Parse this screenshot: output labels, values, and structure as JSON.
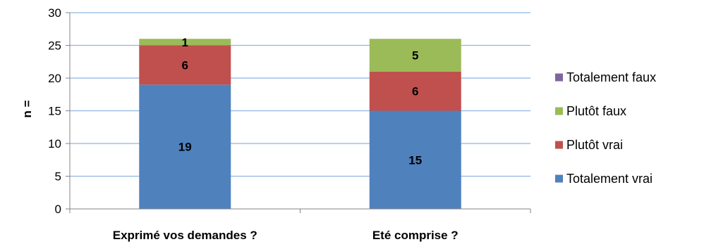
{
  "chart_data": {
    "type": "bar",
    "stacked": true,
    "categories": [
      "Exprimé vos demandes ?",
      "Eté comprise ?"
    ],
    "series": [
      {
        "name": "Totalement vrai",
        "values": [
          19,
          15
        ],
        "color": "#4f81bd"
      },
      {
        "name": "Plutôt vrai",
        "values": [
          6,
          6
        ],
        "color": "#c0504d"
      },
      {
        "name": "Plutôt faux",
        "values": [
          1,
          5
        ],
        "color": "#9bbb59"
      },
      {
        "name": "Totalement faux",
        "values": [
          0,
          0
        ],
        "color": "#8064a2"
      }
    ],
    "ylabel": "n =",
    "ylim": [
      0,
      30
    ],
    "yticks": [
      0,
      5,
      10,
      15,
      20,
      25,
      30
    ],
    "grid": true,
    "legend": "right",
    "legend_order": [
      "Totalement faux",
      "Plutôt faux",
      "Plutôt vrai",
      "Totalement vrai"
    ],
    "gridline_color": "#8eb4e3"
  }
}
